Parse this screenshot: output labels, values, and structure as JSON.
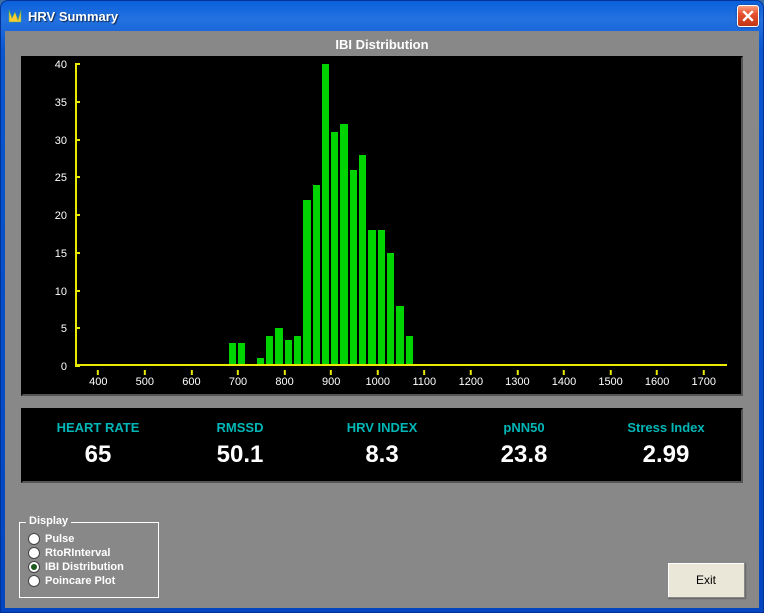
{
  "window": {
    "title": "HRV Summary",
    "close_icon": "close-icon"
  },
  "chart": {
    "title": "IBI Distribution",
    "type": "histogram",
    "background_color": "#000000",
    "axis_color": "#eaea00",
    "bar_color": "#00d400",
    "tick_label_color": "#ffffff",
    "tick_fontsize": 11,
    "xlim": [
      350,
      1750
    ],
    "xtick_start": 400,
    "xtick_step": 100,
    "xtick_end": 1700,
    "ylim": [
      0,
      40
    ],
    "ytick_start": 0,
    "ytick_step": 5,
    "ytick_end": 40,
    "bin_start": 680,
    "bin_width": 20,
    "values": [
      3,
      3,
      0,
      1,
      4,
      5,
      3.5,
      4,
      22,
      24,
      40,
      31,
      32,
      26,
      28,
      18,
      18,
      15,
      8,
      4
    ]
  },
  "metrics": [
    {
      "label": "HEART RATE",
      "value": "65"
    },
    {
      "label": "RMSSD",
      "value": "50.1"
    },
    {
      "label": "HRV INDEX",
      "value": "8.3"
    },
    {
      "label": "pNN50",
      "value": "23.8"
    },
    {
      "label": "Stress Index",
      "value": "2.99"
    }
  ],
  "metrics_style": {
    "label_color": "#00b7b7",
    "value_color": "#ffffff",
    "background": "#000000",
    "label_fontsize": 13,
    "value_fontsize": 24
  },
  "display_group": {
    "legend": "Display",
    "options": [
      {
        "label": "Pulse",
        "selected": false
      },
      {
        "label": "RtoRInterval",
        "selected": false
      },
      {
        "label": "IBI Distribution",
        "selected": true
      },
      {
        "label": "Poincare Plot",
        "selected": false
      }
    ]
  },
  "exit_button": {
    "label": "Exit"
  },
  "colors": {
    "client_bg": "#888888",
    "titlebar_gradient": [
      "#0a5fdb",
      "#0345c1"
    ],
    "close_btn": "#e8502e"
  }
}
